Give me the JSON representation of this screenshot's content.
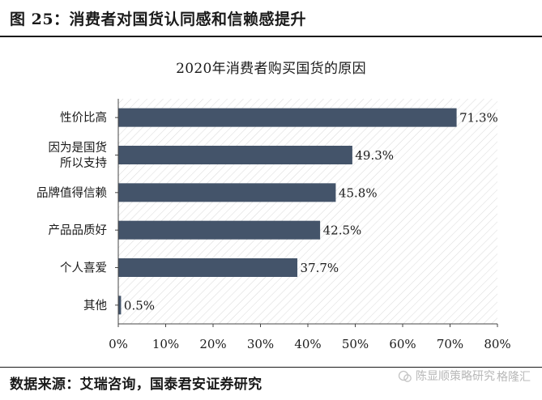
{
  "figure": {
    "title": "图 25：消费者对国货认同感和信赖感提升",
    "source": "数据来源：艾瑞咨询，国泰君安证券研究"
  },
  "watermark": {
    "line1": "陈显顺策略研究",
    "line2": "格隆汇"
  },
  "chart_data": {
    "type": "bar",
    "orientation": "horizontal",
    "title": "2020年消费者购买国货的原因",
    "categories": [
      "性价比高",
      "因为是国货所以支持",
      "品牌值得信赖",
      "产品品质好",
      "个人喜爱",
      "其他"
    ],
    "category_lines": [
      [
        "性价比高"
      ],
      [
        "因为是国货",
        "所以支持"
      ],
      [
        "品牌值得信赖"
      ],
      [
        "产品品质好"
      ],
      [
        "个人喜爱"
      ],
      [
        "其他"
      ]
    ],
    "values": [
      71.3,
      49.3,
      45.8,
      42.5,
      37.7,
      0.5
    ],
    "value_labels": [
      "71.3%",
      "49.3%",
      "45.8%",
      "42.5%",
      "37.7%",
      "0.5%"
    ],
    "xlim": [
      0,
      80
    ],
    "xticks": [
      0,
      10,
      20,
      30,
      40,
      50,
      60,
      70,
      80
    ],
    "xtick_labels": [
      "0%",
      "10%",
      "20%",
      "30%",
      "40%",
      "50%",
      "60%",
      "70%",
      "80%"
    ],
    "xlabel": "",
    "ylabel": "",
    "bar_color": "#44546a",
    "plot_background": "diagonal-hatch",
    "grid": false,
    "legend": "none"
  }
}
